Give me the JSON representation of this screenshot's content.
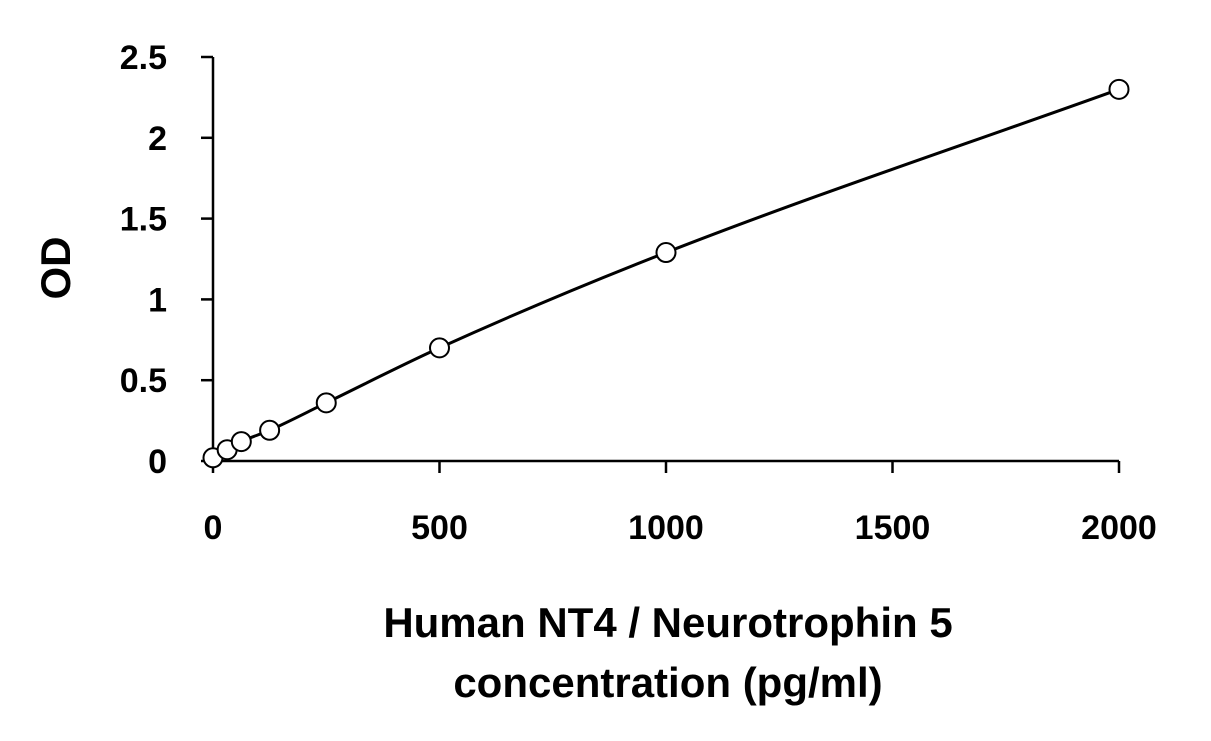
{
  "chart_data": {
    "type": "scatter",
    "title": "",
    "xlabel_lines": [
      "Human NT4 / Neurotrophin 5",
      "concentration (pg/ml)"
    ],
    "ylabel": "OD",
    "xlim": [
      0,
      2000
    ],
    "ylim": [
      0,
      2.5
    ],
    "xticks": [
      0,
      500,
      1000,
      1500,
      2000
    ],
    "yticks": [
      0,
      0.5,
      1,
      1.5,
      2,
      2.5
    ],
    "ytick_labels": [
      "0",
      "0.5",
      "1",
      "1.5",
      "2",
      "2.5"
    ],
    "xtick_labels": [
      "0",
      "500",
      "1000",
      "1500",
      "2000"
    ],
    "grid": false,
    "legend": "none",
    "series": [
      {
        "marker": "open-circle",
        "fit_line": true,
        "x": [
          0,
          31.25,
          62.5,
          125,
          250,
          500,
          1000,
          2000
        ],
        "y": [
          0.02,
          0.07,
          0.12,
          0.19,
          0.36,
          0.7,
          1.29,
          2.3
        ]
      }
    ]
  }
}
